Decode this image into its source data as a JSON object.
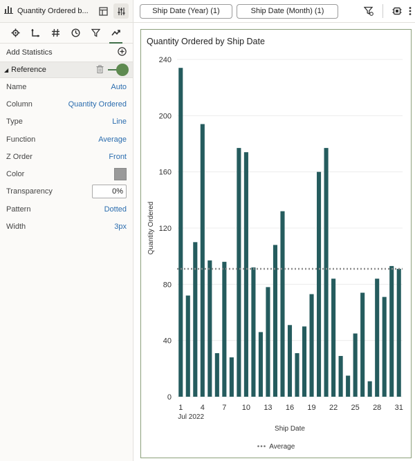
{
  "viz_header": {
    "title": "Quantity Ordered b..."
  },
  "filters": [
    {
      "label": "Ship Date (Year) (1)"
    },
    {
      "label": "Ship Date (Month) (1)"
    }
  ],
  "properties": {
    "add_statistics": "Add Statistics",
    "section": "Reference",
    "rows": [
      {
        "key": "Name",
        "value": "Auto"
      },
      {
        "key": "Column",
        "value": "Quantity Ordered"
      },
      {
        "key": "Type",
        "value": "Line"
      },
      {
        "key": "Function",
        "value": "Average"
      },
      {
        "key": "Z Order",
        "value": "Front"
      },
      {
        "key": "Color",
        "value": ""
      },
      {
        "key": "Transparency",
        "value": "0%"
      },
      {
        "key": "Pattern",
        "value": "Dotted"
      },
      {
        "key": "Width",
        "value": "3px"
      }
    ],
    "color_swatch": "#9a9a9a"
  },
  "chart_data": {
    "type": "bar",
    "title": "Quantity Ordered by Ship Date",
    "xlabel": "Ship Date",
    "ylabel": "Quantity Ordered",
    "x_sublabel": "Jul 2022",
    "categories": [
      "1",
      "2",
      "3",
      "4",
      "5",
      "6",
      "7",
      "8",
      "9",
      "10",
      "11",
      "12",
      "13",
      "14",
      "15",
      "16",
      "17",
      "18",
      "19",
      "20",
      "21",
      "22",
      "23",
      "24",
      "25",
      "26",
      "27",
      "28",
      "29",
      "30",
      "31"
    ],
    "x_tick_labels": [
      "1",
      "4",
      "7",
      "10",
      "13",
      "16",
      "19",
      "22",
      "25",
      "28",
      "31"
    ],
    "values": [
      234,
      72,
      110,
      194,
      97,
      31,
      96,
      28,
      177,
      174,
      92,
      46,
      78,
      108,
      132,
      51,
      31,
      50,
      73,
      160,
      177,
      84,
      29,
      15,
      45,
      74,
      11,
      84,
      71,
      93,
      91
    ],
    "ylim": [
      0,
      240
    ],
    "yticks": [
      0,
      40,
      80,
      120,
      160,
      200,
      240
    ],
    "reference_line": {
      "name": "Average",
      "value": 91,
      "style": "dotted",
      "color": "#8a8a8a"
    },
    "bar_color": "#255c5e",
    "legend": [
      {
        "name": "Average"
      }
    ],
    "grid": true
  }
}
